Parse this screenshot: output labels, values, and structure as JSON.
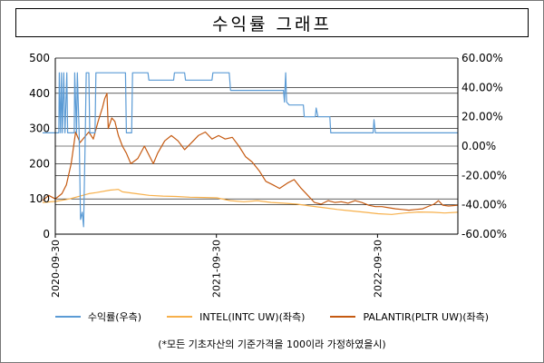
{
  "chart_data": {
    "type": "line",
    "title": "수익률 그래프",
    "x_tick_labels": [
      "2020-09-30",
      "2021-09-30",
      "2022-09-30"
    ],
    "x_range": [
      "2020-09-30",
      "2023-03-31"
    ],
    "y_left": {
      "ticks": [
        "0",
        "100",
        "200",
        "300",
        "400",
        "500"
      ],
      "range": [
        0,
        500
      ]
    },
    "y_right": {
      "ticks": [
        "-60.00%",
        "-40.00%",
        "-20.00%",
        "0.00%",
        "20.00%",
        "40.00%",
        "60.00%"
      ],
      "range": [
        -60,
        60
      ]
    },
    "grid": "horizontal",
    "legend_position": "bottom",
    "series": [
      {
        "name": "수익률(우측)",
        "axis": "right",
        "color": "#5b9bd5",
        "points": [
          [
            "2020-09-01",
            9
          ],
          [
            "2020-10-08",
            9
          ],
          [
            "2020-10-09",
            50
          ],
          [
            "2020-10-12",
            9
          ],
          [
            "2020-10-14",
            50
          ],
          [
            "2020-10-16",
            9
          ],
          [
            "2020-10-19",
            50
          ],
          [
            "2020-10-22",
            9
          ],
          [
            "2020-10-26",
            50
          ],
          [
            "2020-10-28",
            9
          ],
          [
            "2020-11-12",
            9
          ],
          [
            "2020-11-13",
            50
          ],
          [
            "2020-11-17",
            9
          ],
          [
            "2020-11-19",
            50
          ],
          [
            "2020-11-23",
            9
          ],
          [
            "2020-11-26",
            -50
          ],
          [
            "2020-11-30",
            -45
          ],
          [
            "2020-12-03",
            -55
          ],
          [
            "2020-12-07",
            9
          ],
          [
            "2020-12-09",
            50
          ],
          [
            "2020-12-15",
            50
          ],
          [
            "2020-12-17",
            9
          ],
          [
            "2020-12-29",
            9
          ],
          [
            "2020-12-31",
            50
          ],
          [
            "2021-03-08",
            50
          ],
          [
            "2021-03-10",
            9
          ],
          [
            "2021-03-22",
            9
          ],
          [
            "2021-03-24",
            50
          ],
          [
            "2021-04-28",
            50
          ],
          [
            "2021-04-30",
            45
          ],
          [
            "2021-06-25",
            45
          ],
          [
            "2021-06-27",
            50
          ],
          [
            "2021-07-20",
            50
          ],
          [
            "2021-07-22",
            45
          ],
          [
            "2021-09-20",
            45
          ],
          [
            "2021-09-22",
            50
          ],
          [
            "2021-10-29",
            50
          ],
          [
            "2021-11-01",
            38
          ],
          [
            "2022-03-01",
            38
          ],
          [
            "2022-03-03",
            30
          ],
          [
            "2022-03-06",
            50
          ],
          [
            "2022-03-08",
            30
          ],
          [
            "2022-03-14",
            28
          ],
          [
            "2022-04-15",
            28
          ],
          [
            "2022-04-17",
            20
          ],
          [
            "2022-05-12",
            20
          ],
          [
            "2022-05-14",
            26
          ],
          [
            "2022-05-18",
            20
          ],
          [
            "2022-06-14",
            20
          ],
          [
            "2022-06-16",
            9
          ],
          [
            "2022-09-20",
            9
          ],
          [
            "2022-09-22",
            18
          ],
          [
            "2022-09-25",
            9
          ],
          [
            "2023-03-31",
            9
          ]
        ]
      },
      {
        "name": "INTEL(INTC UW)(좌측)",
        "axis": "left",
        "color": "#f7b04b",
        "points": [
          [
            "2020-09-01",
            90
          ],
          [
            "2020-10-01",
            93
          ],
          [
            "2020-11-01",
            100
          ],
          [
            "2020-12-01",
            110
          ],
          [
            "2020-12-15",
            115
          ],
          [
            "2021-01-01",
            118
          ],
          [
            "2021-02-01",
            125
          ],
          [
            "2021-02-20",
            127
          ],
          [
            "2021-03-01",
            120
          ],
          [
            "2021-04-01",
            115
          ],
          [
            "2021-05-01",
            110
          ],
          [
            "2021-06-01",
            108
          ],
          [
            "2021-07-01",
            107
          ],
          [
            "2021-08-01",
            105
          ],
          [
            "2021-09-01",
            104
          ],
          [
            "2021-10-01",
            103
          ],
          [
            "2021-11-01",
            95
          ],
          [
            "2021-12-01",
            92
          ],
          [
            "2022-01-01",
            95
          ],
          [
            "2022-02-01",
            90
          ],
          [
            "2022-03-01",
            88
          ],
          [
            "2022-04-01",
            85
          ],
          [
            "2022-05-01",
            80
          ],
          [
            "2022-06-01",
            75
          ],
          [
            "2022-07-01",
            70
          ],
          [
            "2022-08-01",
            66
          ],
          [
            "2022-09-01",
            62
          ],
          [
            "2022-10-01",
            58
          ],
          [
            "2022-11-01",
            56
          ],
          [
            "2022-12-01",
            60
          ],
          [
            "2023-01-01",
            63
          ],
          [
            "2023-02-01",
            62
          ],
          [
            "2023-03-01",
            60
          ],
          [
            "2023-03-31",
            62
          ]
        ]
      },
      {
        "name": "PALANTIR(PLTR UW)(좌측)",
        "axis": "left",
        "color": "#c55a11",
        "points": [
          [
            "2020-09-01",
            95
          ],
          [
            "2020-09-15",
            110
          ],
          [
            "2020-09-30",
            100
          ],
          [
            "2020-10-15",
            115
          ],
          [
            "2020-10-25",
            140
          ],
          [
            "2020-11-05",
            200
          ],
          [
            "2020-11-15",
            290
          ],
          [
            "2020-11-25",
            260
          ],
          [
            "2020-12-05",
            275
          ],
          [
            "2020-12-15",
            290
          ],
          [
            "2020-12-25",
            270
          ],
          [
            "2021-01-05",
            320
          ],
          [
            "2021-01-15",
            360
          ],
          [
            "2021-01-20",
            385
          ],
          [
            "2021-01-25",
            400
          ],
          [
            "2021-01-28",
            300
          ],
          [
            "2021-02-05",
            330
          ],
          [
            "2021-02-12",
            320
          ],
          [
            "2021-02-20",
            280
          ],
          [
            "2021-03-01",
            250
          ],
          [
            "2021-03-10",
            230
          ],
          [
            "2021-03-20",
            200
          ],
          [
            "2021-04-05",
            215
          ],
          [
            "2021-04-20",
            250
          ],
          [
            "2021-05-10",
            200
          ],
          [
            "2021-05-20",
            230
          ],
          [
            "2021-06-05",
            265
          ],
          [
            "2021-06-20",
            280
          ],
          [
            "2021-07-05",
            265
          ],
          [
            "2021-07-20",
            240
          ],
          [
            "2021-08-05",
            260
          ],
          [
            "2021-08-20",
            280
          ],
          [
            "2021-09-05",
            290
          ],
          [
            "2021-09-20",
            270
          ],
          [
            "2021-10-05",
            280
          ],
          [
            "2021-10-20",
            270
          ],
          [
            "2021-11-05",
            275
          ],
          [
            "2021-11-20",
            250
          ],
          [
            "2021-12-05",
            220
          ],
          [
            "2021-12-20",
            205
          ],
          [
            "2022-01-05",
            180
          ],
          [
            "2022-01-20",
            150
          ],
          [
            "2022-02-05",
            140
          ],
          [
            "2022-02-20",
            130
          ],
          [
            "2022-03-10",
            145
          ],
          [
            "2022-03-25",
            155
          ],
          [
            "2022-04-10",
            130
          ],
          [
            "2022-04-25",
            110
          ],
          [
            "2022-05-10",
            90
          ],
          [
            "2022-05-25",
            85
          ],
          [
            "2022-06-10",
            95
          ],
          [
            "2022-06-25",
            90
          ],
          [
            "2022-07-10",
            92
          ],
          [
            "2022-07-25",
            88
          ],
          [
            "2022-08-10",
            95
          ],
          [
            "2022-08-25",
            90
          ],
          [
            "2022-09-10",
            82
          ],
          [
            "2022-09-25",
            78
          ],
          [
            "2022-10-10",
            78
          ],
          [
            "2022-10-25",
            75
          ],
          [
            "2022-11-10",
            72
          ],
          [
            "2022-11-25",
            70
          ],
          [
            "2022-12-10",
            68
          ],
          [
            "2022-12-25",
            70
          ],
          [
            "2023-01-10",
            72
          ],
          [
            "2023-01-25",
            80
          ],
          [
            "2023-02-05",
            85
          ],
          [
            "2023-02-15",
            95
          ],
          [
            "2023-02-25",
            82
          ],
          [
            "2023-03-10",
            80
          ],
          [
            "2023-03-31",
            82
          ]
        ]
      }
    ],
    "footnote": "(*모든 기초자산의 기준가격을 100이라 가정하였을시)"
  }
}
